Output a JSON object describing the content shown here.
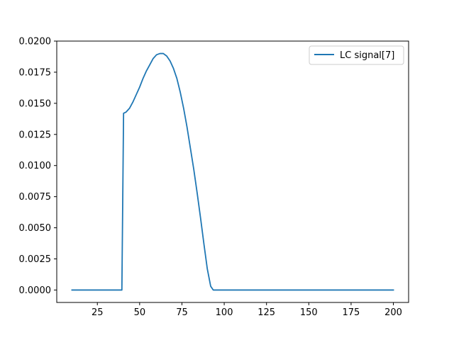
{
  "chart_data": {
    "type": "line",
    "title": "",
    "xlabel": "",
    "ylabel": "",
    "xlim": [
      1,
      209
    ],
    "ylim": [
      -0.001,
      0.02
    ],
    "xticks": [
      25,
      50,
      75,
      100,
      125,
      150,
      175,
      200
    ],
    "yticks": [
      0.0,
      0.0025,
      0.005,
      0.0075,
      0.01,
      0.0125,
      0.015,
      0.0175,
      0.02
    ],
    "xtick_labels": [
      "25",
      "50",
      "75",
      "100",
      "125",
      "150",
      "175",
      "200"
    ],
    "ytick_labels": [
      "0.0000",
      "0.0025",
      "0.0050",
      "0.0075",
      "0.0100",
      "0.0125",
      "0.0150",
      "0.0175",
      "0.0200"
    ],
    "grid": false,
    "legend_position": "top-right",
    "series": [
      {
        "name": "LC signal[7]",
        "color": "#1f77b4",
        "x": [
          10,
          20,
          30,
          39.5,
          40.5,
          42,
          44,
          46,
          48,
          50,
          52,
          54,
          56,
          58,
          60,
          62,
          64,
          66,
          68,
          70,
          72,
          74,
          76,
          78,
          80,
          82,
          84,
          86,
          88,
          90,
          92,
          93.5,
          95,
          100,
          125,
          150,
          175,
          200
        ],
        "y": [
          0,
          0,
          0,
          0,
          0.0142,
          0.0143,
          0.0146,
          0.0151,
          0.0157,
          0.0163,
          0.017,
          0.0176,
          0.0181,
          0.0186,
          0.0189,
          0.019,
          0.019,
          0.0188,
          0.0184,
          0.0178,
          0.017,
          0.0159,
          0.0146,
          0.0131,
          0.0114,
          0.0097,
          0.0078,
          0.0058,
          0.0037,
          0.0017,
          0.0003,
          0.0,
          0,
          0,
          0,
          0,
          0,
          0
        ]
      }
    ]
  }
}
